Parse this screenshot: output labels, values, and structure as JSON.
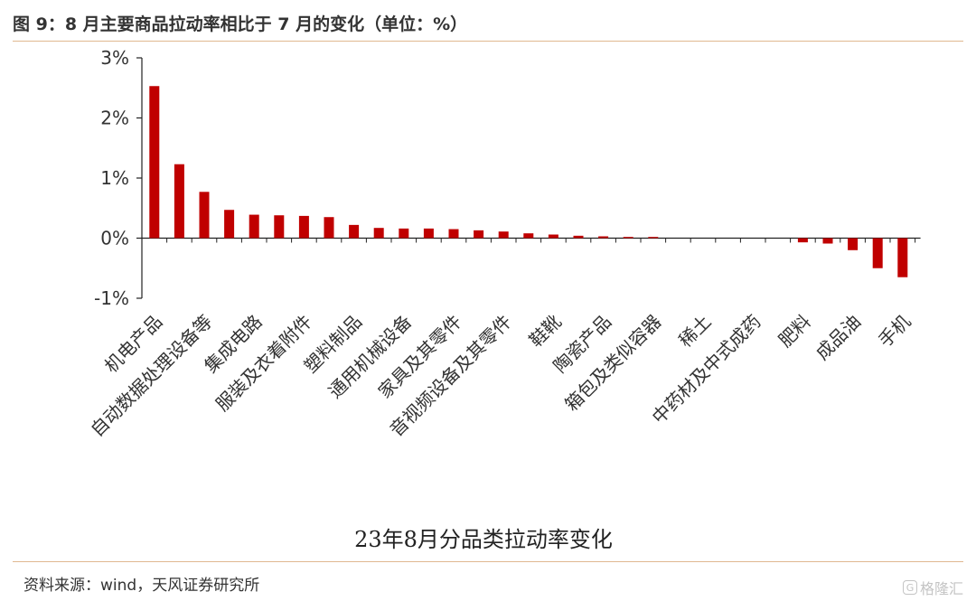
{
  "figure_title": "图 9：8 月主要商品拉动率相比于 7 月的变化（单位：%）",
  "source": "资料来源：wind，天风证券研究所",
  "watermark": {
    "icon": "G",
    "text": "格隆汇"
  },
  "colors": {
    "bar": "#c00000",
    "axis": "#222222",
    "rule": "#e0b890"
  },
  "chart_data": {
    "type": "bar",
    "title": "",
    "xlabel": "23年8月分品类拉动率变化",
    "ylabel": "",
    "ylim": [
      -1,
      3
    ],
    "yticks": [
      {
        "value": 3,
        "label": "3%"
      },
      {
        "value": 2,
        "label": "2%"
      },
      {
        "value": 1,
        "label": "1%"
      },
      {
        "value": 0,
        "label": "0%"
      },
      {
        "value": -1,
        "label": "-1%"
      }
    ],
    "grid": false,
    "categories": [
      "机电产品",
      "自动数据处理设备等",
      "集成电路",
      "服装及衣着附件",
      "塑料制品",
      "通用机械设备",
      "家具及其零件",
      "音视频设备及其零件",
      "鞋靴",
      "陶瓷产品",
      "箱包及类似容器",
      "稀土",
      "中药材及中式成药",
      "肥料",
      "成品油",
      "手机"
    ],
    "bars": [
      {
        "category": "机电产品",
        "value": 2.53,
        "label": true
      },
      {
        "category": "",
        "value": 1.23,
        "label": false
      },
      {
        "category": "自动数据处理设备等",
        "value": 0.77,
        "label": true
      },
      {
        "category": "",
        "value": 0.47,
        "label": false
      },
      {
        "category": "集成电路",
        "value": 0.39,
        "label": true
      },
      {
        "category": "",
        "value": 0.38,
        "label": false
      },
      {
        "category": "服装及衣着附件",
        "value": 0.37,
        "label": true
      },
      {
        "category": "",
        "value": 0.35,
        "label": false
      },
      {
        "category": "塑料制品",
        "value": 0.22,
        "label": true
      },
      {
        "category": "",
        "value": 0.17,
        "label": false
      },
      {
        "category": "通用机械设备",
        "value": 0.16,
        "label": true
      },
      {
        "category": "",
        "value": 0.16,
        "label": false
      },
      {
        "category": "家具及其零件",
        "value": 0.15,
        "label": true
      },
      {
        "category": "",
        "value": 0.13,
        "label": false
      },
      {
        "category": "音视频设备及其零件",
        "value": 0.11,
        "label": true
      },
      {
        "category": "",
        "value": 0.08,
        "label": false
      },
      {
        "category": "鞋靴",
        "value": 0.06,
        "label": true
      },
      {
        "category": "",
        "value": 0.04,
        "label": false
      },
      {
        "category": "陶瓷产品",
        "value": 0.03,
        "label": true
      },
      {
        "category": "",
        "value": 0.02,
        "label": false
      },
      {
        "category": "箱包及类似容器",
        "value": 0.02,
        "label": true
      },
      {
        "category": "",
        "value": 0.0,
        "label": false
      },
      {
        "category": "稀土",
        "value": 0.0,
        "label": true
      },
      {
        "category": "",
        "value": 0.0,
        "label": false
      },
      {
        "category": "中药材及中式成药",
        "value": 0.0,
        "label": true
      },
      {
        "category": "",
        "value": 0.0,
        "label": false
      },
      {
        "category": "肥料",
        "value": -0.07,
        "label": true
      },
      {
        "category": "",
        "value": -0.09,
        "label": false
      },
      {
        "category": "成品油",
        "value": -0.2,
        "label": true
      },
      {
        "category": "",
        "value": -0.5,
        "label": false
      },
      {
        "category": "手机",
        "value": -0.65,
        "label": true
      }
    ]
  }
}
